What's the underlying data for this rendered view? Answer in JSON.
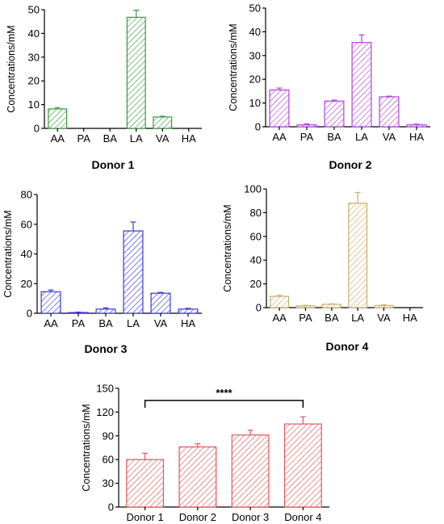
{
  "chart_data": [
    {
      "type": "bar",
      "panel": "donor1",
      "title": "Donor 1",
      "ylabel": "Concentrations/mM",
      "xlabel": "",
      "color": "#3c9a3c",
      "categories": [
        "AA",
        "PA",
        "BA",
        "LA",
        "VA",
        "HA"
      ],
      "values": [
        8.2,
        0,
        0,
        46.8,
        4.8,
        0
      ],
      "errors": [
        0.5,
        0,
        0,
        3.0,
        0.3,
        0
      ],
      "ylim": [
        0,
        50
      ],
      "yticks": [
        0,
        10,
        20,
        30,
        40,
        50
      ],
      "grid": false
    },
    {
      "type": "bar",
      "panel": "donor2",
      "title": "Donor 2",
      "ylabel": "Concentrations/mM",
      "xlabel": "",
      "color": "#b044d4",
      "categories": [
        "AA",
        "PA",
        "BA",
        "LA",
        "VA",
        "HA"
      ],
      "values": [
        15.5,
        0.8,
        10.8,
        35.5,
        12.6,
        0.8
      ],
      "errors": [
        0.8,
        0.4,
        0.4,
        3.2,
        0.3,
        0.3
      ],
      "ylim": [
        0,
        50
      ],
      "yticks": [
        0,
        10,
        20,
        30,
        40,
        50
      ],
      "grid": false
    },
    {
      "type": "bar",
      "panel": "donor3",
      "title": "Donor 3",
      "ylabel": "Concentrations/mM",
      "xlabel": "",
      "color": "#3a3ad0",
      "categories": [
        "AA",
        "PA",
        "BA",
        "LA",
        "VA",
        "HA"
      ],
      "values": [
        14.5,
        0.5,
        2.8,
        55.5,
        13.5,
        2.8
      ],
      "errors": [
        1.2,
        0.3,
        0.8,
        6.0,
        0.6,
        0.5
      ],
      "ylim": [
        0,
        80
      ],
      "yticks": [
        0,
        20,
        40,
        60,
        80
      ],
      "grid": false
    },
    {
      "type": "bar",
      "panel": "donor4",
      "title": "Donor 4",
      "ylabel": "Concentrations/mM",
      "xlabel": "",
      "color": "#c9ad6c",
      "categories": [
        "AA",
        "PA",
        "BA",
        "LA",
        "VA",
        "HA"
      ],
      "values": [
        9.5,
        1.5,
        2.8,
        88.0,
        1.8,
        0
      ],
      "errors": [
        0.8,
        0.4,
        0.4,
        9.0,
        0.5,
        0
      ],
      "ylim": [
        0,
        100
      ],
      "yticks": [
        0,
        20,
        40,
        60,
        80,
        100
      ],
      "grid": false
    },
    {
      "type": "bar",
      "panel": "total",
      "title": "",
      "ylabel": "Concentrations/mM",
      "xlabel": "",
      "color": "#dd5858",
      "categories": [
        "Donor 1",
        "Donor 2",
        "Donor 3",
        "Donor 4"
      ],
      "values": [
        60,
        76,
        91,
        105
      ],
      "errors": [
        8,
        4,
        6,
        9
      ],
      "ylim": [
        0,
        150
      ],
      "yticks": [
        0,
        30,
        60,
        90,
        120,
        150
      ],
      "grid": false,
      "significance": {
        "from": "Donor 1",
        "to": "Donor 4",
        "label": "****"
      }
    }
  ]
}
